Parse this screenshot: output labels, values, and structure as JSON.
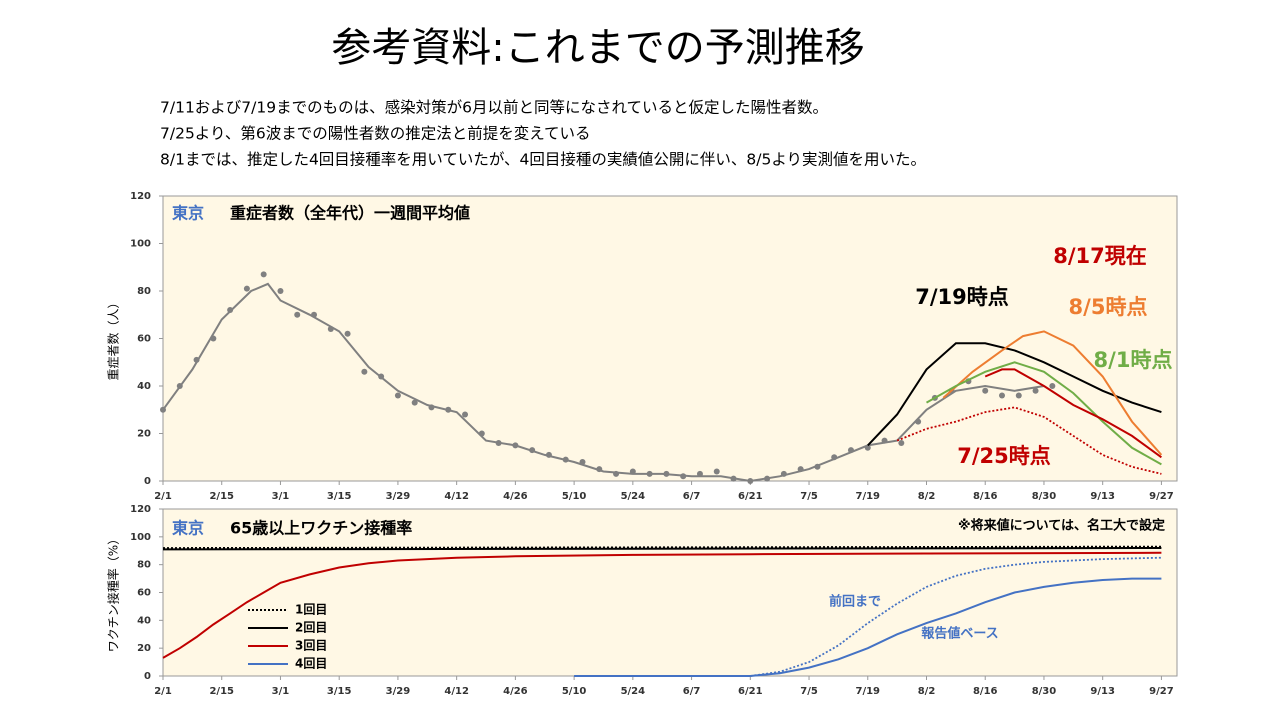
{
  "title": "参考資料:これまでの予測推移",
  "notes": [
    "7/11および7/19までのものは、感染対策が6月以前と同等になされていると仮定した陽性者数。",
    "7/25より、第6波までの陽性者数の推定法と前提を変えている",
    "8/1までは、推定した4回目接種率を用いていたが、4回目接種の実績値公開に伴い、8/5より実測値を用いた。"
  ],
  "chart_data": [
    {
      "type": "line",
      "region": "東京",
      "title": "重症者数（全年代）一週間平均値",
      "ylabel": "重症者数（人）",
      "xlim": [
        0,
        241
      ],
      "ylim": [
        0,
        120
      ],
      "yticks": [
        0,
        20,
        40,
        60,
        80,
        100,
        120
      ],
      "xticks": [
        {
          "value": 0,
          "label": "2/1"
        },
        {
          "value": 14,
          "label": "2/15"
        },
        {
          "value": 28,
          "label": "3/1"
        },
        {
          "value": 42,
          "label": "3/15"
        },
        {
          "value": 56,
          "label": "3/29"
        },
        {
          "value": 70,
          "label": "4/12"
        },
        {
          "value": 84,
          "label": "4/26"
        },
        {
          "value": 98,
          "label": "5/10"
        },
        {
          "value": 112,
          "label": "5/24"
        },
        {
          "value": 126,
          "label": "6/7"
        },
        {
          "value": 140,
          "label": "6/21"
        },
        {
          "value": 154,
          "label": "7/5"
        },
        {
          "value": 168,
          "label": "7/19"
        },
        {
          "value": 182,
          "label": "8/2"
        },
        {
          "value": 196,
          "label": "8/16"
        },
        {
          "value": 210,
          "label": "8/30"
        },
        {
          "value": 224,
          "label": "9/13"
        },
        {
          "value": 238,
          "label": "9/27"
        }
      ],
      "legend": false,
      "series": [
        {
          "color": "#808080",
          "style": "dots",
          "x": [
            0,
            4,
            8,
            12,
            16,
            20,
            24,
            28,
            32,
            36,
            40,
            44,
            48,
            52,
            56,
            60,
            64,
            68,
            72,
            76,
            80,
            84,
            88,
            92,
            96,
            100,
            104,
            108,
            112,
            116,
            120,
            124,
            128,
            132,
            136,
            140,
            144,
            148,
            152,
            156,
            160,
            164,
            168,
            172,
            176,
            180,
            184,
            188,
            192,
            196,
            200,
            204,
            208,
            212
          ],
          "values": [
            30,
            40,
            51,
            60,
            72,
            81,
            87,
            80,
            70,
            70,
            64,
            62,
            46,
            44,
            36,
            33,
            31,
            30,
            28,
            20,
            16,
            15,
            13,
            11,
            9,
            8,
            5,
            3,
            4,
            3,
            3,
            2,
            3,
            4,
            1,
            0,
            1,
            3,
            5,
            6,
            10,
            13,
            14,
            17,
            16,
            25,
            35,
            38,
            42,
            38,
            36,
            36,
            38,
            40
          ]
        },
        {
          "color": "#808080",
          "style": "line",
          "x": [
            0,
            7,
            14,
            21,
            25,
            28,
            35,
            42,
            49,
            56,
            63,
            70,
            77,
            84,
            91,
            98,
            105,
            112,
            119,
            126,
            133,
            140,
            147,
            154,
            161,
            168,
            175,
            182,
            189,
            196,
            203,
            210
          ],
          "values": [
            30,
            47,
            68,
            80,
            83,
            76,
            70,
            63,
            48,
            38,
            32,
            29,
            17,
            15,
            11,
            8,
            4,
            3,
            3,
            2,
            2,
            0,
            2,
            5,
            10,
            15,
            17,
            30,
            38,
            40,
            38,
            40
          ]
        },
        {
          "name": "7/19時点",
          "color": "#000000",
          "style": "line",
          "x": [
            168,
            175,
            182,
            189,
            196,
            203,
            210,
            217,
            224,
            231,
            238
          ],
          "values": [
            15,
            28,
            47,
            58,
            58,
            55,
            50,
            44,
            38,
            33,
            29
          ]
        },
        {
          "name": "8/5時点",
          "color": "#ed7d31",
          "style": "line",
          "x": [
            186,
            193,
            200,
            205,
            210,
            217,
            224,
            231,
            238
          ],
          "values": [
            35,
            46,
            55,
            61,
            63,
            57,
            44,
            25,
            11
          ]
        },
        {
          "name": "8/1時点",
          "color": "#70ad47",
          "style": "line",
          "x": [
            182,
            189,
            196,
            203,
            210,
            217,
            224,
            231,
            238
          ],
          "values": [
            33,
            40,
            46,
            50,
            46,
            37,
            25,
            14,
            7
          ]
        },
        {
          "name": "7/25時点",
          "color": "#c00000",
          "style": "dotted",
          "x": [
            175,
            182,
            189,
            196,
            203,
            210,
            217,
            224,
            231,
            238
          ],
          "values": [
            17,
            22,
            25,
            29,
            31,
            27,
            19,
            11,
            6,
            3
          ]
        },
        {
          "name": "8/17現在",
          "color": "#c00000",
          "style": "line",
          "x": [
            196,
            200,
            203,
            210,
            217,
            224,
            231,
            238
          ],
          "values": [
            44,
            47,
            47,
            40,
            32,
            26,
            19,
            10
          ]
        }
      ]
    },
    {
      "type": "line",
      "region": "東京",
      "title": "65歳以上ワクチン接種率",
      "ylabel": "ワクチン接種率（%）",
      "note": "※将来値については、名工大で設定",
      "xlim": [
        0,
        241
      ],
      "ylim": [
        0,
        120
      ],
      "yticks": [
        0,
        20,
        40,
        60,
        80,
        100,
        120
      ],
      "xticks": [
        {
          "value": 0,
          "label": "2/1"
        },
        {
          "value": 14,
          "label": "2/15"
        },
        {
          "value": 28,
          "label": "3/1"
        },
        {
          "value": 42,
          "label": "3/15"
        },
        {
          "value": 56,
          "label": "3/29"
        },
        {
          "value": 70,
          "label": "4/12"
        },
        {
          "value": 84,
          "label": "4/26"
        },
        {
          "value": 98,
          "label": "5/10"
        },
        {
          "value": 112,
          "label": "5/24"
        },
        {
          "value": 126,
          "label": "6/7"
        },
        {
          "value": 140,
          "label": "6/21"
        },
        {
          "value": 154,
          "label": "7/5"
        },
        {
          "value": 168,
          "label": "7/19"
        },
        {
          "value": 182,
          "label": "8/2"
        },
        {
          "value": 196,
          "label": "8/16"
        },
        {
          "value": 210,
          "label": "8/30"
        },
        {
          "value": 224,
          "label": "9/13"
        },
        {
          "value": 238,
          "label": "9/27"
        }
      ],
      "legend": true,
      "annotations": [
        "前回まで",
        "報告値ベース"
      ],
      "series": [
        {
          "name": "1回目",
          "color": "#000000",
          "style": "dotted",
          "x": [
            0,
            238
          ],
          "values": [
            92,
            93
          ]
        },
        {
          "name": "2回目",
          "color": "#000000",
          "style": "line",
          "x": [
            0,
            238
          ],
          "values": [
            91,
            92
          ]
        },
        {
          "name": "3回目",
          "color": "#c00000",
          "style": "line",
          "x": [
            0,
            4,
            8,
            12,
            16,
            20,
            24,
            28,
            35,
            42,
            49,
            56,
            70,
            84,
            112,
            140,
            182,
            238
          ],
          "values": [
            13,
            20,
            28,
            37,
            45,
            53,
            60,
            67,
            73,
            78,
            81,
            83,
            85,
            86,
            87,
            87.5,
            88,
            88.5
          ]
        },
        {
          "name": "4回目",
          "color": "#4472c4",
          "style": "line",
          "x": [
            98,
            140,
            147,
            154,
            161,
            168,
            175,
            182,
            189,
            196,
            203,
            210,
            217,
            224,
            231,
            238
          ],
          "values": [
            0,
            0,
            2,
            6,
            12,
            20,
            30,
            38,
            45,
            53,
            60,
            64,
            67,
            69,
            70,
            70
          ]
        },
        {
          "color": "#4472c4",
          "style": "dotted",
          "x": [
            140,
            147,
            154,
            161,
            168,
            175,
            182,
            189,
            196,
            203,
            210,
            224,
            238
          ],
          "values": [
            0,
            3,
            10,
            22,
            38,
            52,
            64,
            72,
            77,
            80,
            82,
            84,
            85
          ]
        }
      ]
    }
  ]
}
